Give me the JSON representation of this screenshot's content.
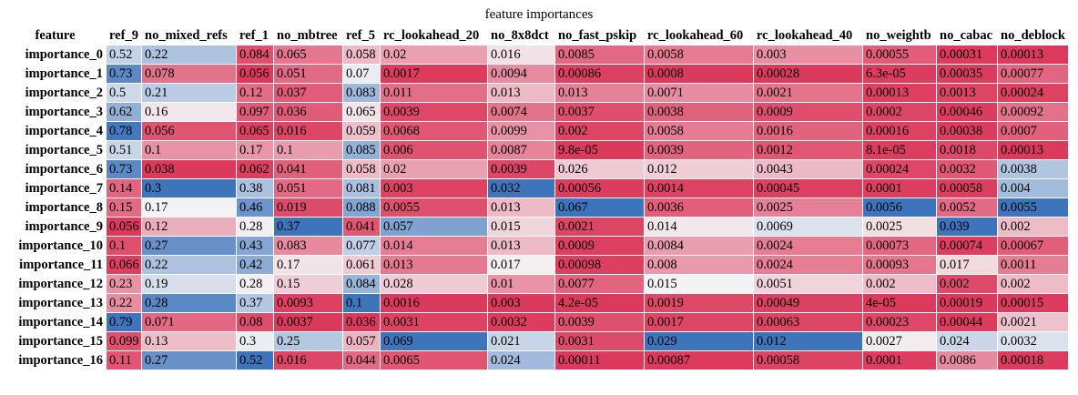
{
  "chart_data": {
    "type": "table",
    "title": "feature importances",
    "corner_label": "feature",
    "columns": [
      "ref_9",
      "no_mixed_refs",
      "ref_1",
      "no_mbtree",
      "ref_5",
      "rc_lookahead_20",
      "no_8x8dct",
      "no_fast_pskip",
      "rc_lookahead_60",
      "rc_lookahead_40",
      "no_weightb",
      "no_cabac",
      "no_deblock"
    ],
    "rows": [
      {
        "label": "importance_0",
        "cells": [
          "0.52",
          "0.22",
          "0.084",
          "0.065",
          "0.058",
          "0.02",
          "0.016",
          "0.0085",
          "0.0058",
          "0.003",
          "0.00055",
          "0.00031",
          "0.00013"
        ]
      },
      {
        "label": "importance_1",
        "cells": [
          "0.73",
          "0.078",
          "0.056",
          "0.051",
          "0.07",
          "0.0017",
          "0.0094",
          "0.00086",
          "0.0008",
          "0.00028",
          "6.3e-05",
          "0.00035",
          "0.00077"
        ]
      },
      {
        "label": "importance_2",
        "cells": [
          "0.5",
          "0.21",
          "0.12",
          "0.037",
          "0.083",
          "0.011",
          "0.013",
          "0.013",
          "0.0071",
          "0.0021",
          "0.00013",
          "0.0013",
          "0.00024"
        ]
      },
      {
        "label": "importance_3",
        "cells": [
          "0.62",
          "0.16",
          "0.097",
          "0.036",
          "0.065",
          "0.0039",
          "0.0074",
          "0.0037",
          "0.0038",
          "0.0009",
          "0.0002",
          "0.00046",
          "0.00092"
        ]
      },
      {
        "label": "importance_4",
        "cells": [
          "0.78",
          "0.056",
          "0.065",
          "0.016",
          "0.059",
          "0.0068",
          "0.0099",
          "0.002",
          "0.0058",
          "0.0016",
          "0.00016",
          "0.00038",
          "0.0007"
        ]
      },
      {
        "label": "importance_5",
        "cells": [
          "0.51",
          "0.1",
          "0.17",
          "0.1",
          "0.085",
          "0.006",
          "0.0087",
          "9.8e-05",
          "0.0039",
          "0.0012",
          "8.1e-05",
          "0.0018",
          "0.00013"
        ]
      },
      {
        "label": "importance_6",
        "cells": [
          "0.73",
          "0.038",
          "0.062",
          "0.041",
          "0.058",
          "0.02",
          "0.0039",
          "0.026",
          "0.012",
          "0.0043",
          "0.00024",
          "0.0032",
          "0.0038"
        ]
      },
      {
        "label": "importance_7",
        "cells": [
          "0.14",
          "0.3",
          "0.38",
          "0.051",
          "0.081",
          "0.003",
          "0.032",
          "0.00056",
          "0.0014",
          "0.00045",
          "0.0001",
          "0.00058",
          "0.004"
        ]
      },
      {
        "label": "importance_8",
        "cells": [
          "0.15",
          "0.17",
          "0.46",
          "0.019",
          "0.088",
          "0.0055",
          "0.013",
          "0.067",
          "0.0036",
          "0.0025",
          "0.0056",
          "0.0052",
          "0.0055"
        ]
      },
      {
        "label": "importance_9",
        "cells": [
          "0.056",
          "0.12",
          "0.28",
          "0.37",
          "0.041",
          "0.057",
          "0.015",
          "0.0021",
          "0.014",
          "0.0069",
          "0.0025",
          "0.039",
          "0.002"
        ]
      },
      {
        "label": "importance_10",
        "cells": [
          "0.1",
          "0.27",
          "0.43",
          "0.083",
          "0.077",
          "0.014",
          "0.013",
          "0.0009",
          "0.0084",
          "0.0024",
          "0.00073",
          "0.00074",
          "0.00067"
        ]
      },
      {
        "label": "importance_11",
        "cells": [
          "0.066",
          "0.22",
          "0.42",
          "0.17",
          "0.061",
          "0.013",
          "0.017",
          "0.00098",
          "0.008",
          "0.0024",
          "0.00093",
          "0.017",
          "0.0011"
        ]
      },
      {
        "label": "importance_12",
        "cells": [
          "0.23",
          "0.19",
          "0.28",
          "0.15",
          "0.084",
          "0.028",
          "0.01",
          "0.0077",
          "0.015",
          "0.0051",
          "0.002",
          "0.002",
          "0.002"
        ]
      },
      {
        "label": "importance_13",
        "cells": [
          "0.22",
          "0.28",
          "0.37",
          "0.0093",
          "0.1",
          "0.0016",
          "0.003",
          "4.2e-05",
          "0.0019",
          "0.00049",
          "4e-05",
          "0.00019",
          "0.00015"
        ]
      },
      {
        "label": "importance_14",
        "cells": [
          "0.79",
          "0.071",
          "0.08",
          "0.0037",
          "0.036",
          "0.0031",
          "0.0032",
          "0.0039",
          "0.0017",
          "0.00063",
          "0.00023",
          "0.00044",
          "0.0021"
        ]
      },
      {
        "label": "importance_15",
        "cells": [
          "0.099",
          "0.13",
          "0.3",
          "0.25",
          "0.057",
          "0.069",
          "0.021",
          "0.0031",
          "0.029",
          "0.012",
          "0.0027",
          "0.024",
          "0.0032"
        ]
      },
      {
        "label": "importance_16",
        "cells": [
          "0.11",
          "0.27",
          "0.52",
          "0.016",
          "0.044",
          "0.0065",
          "0.024",
          "0.00011",
          "0.00087",
          "0.00058",
          "0.0001",
          "0.0086",
          "0.00018"
        ]
      }
    ],
    "colormap": {
      "low": "#dc3a5c",
      "mid": "#f4f4f6",
      "high": "#3e74bc",
      "scale": "per-column"
    }
  }
}
